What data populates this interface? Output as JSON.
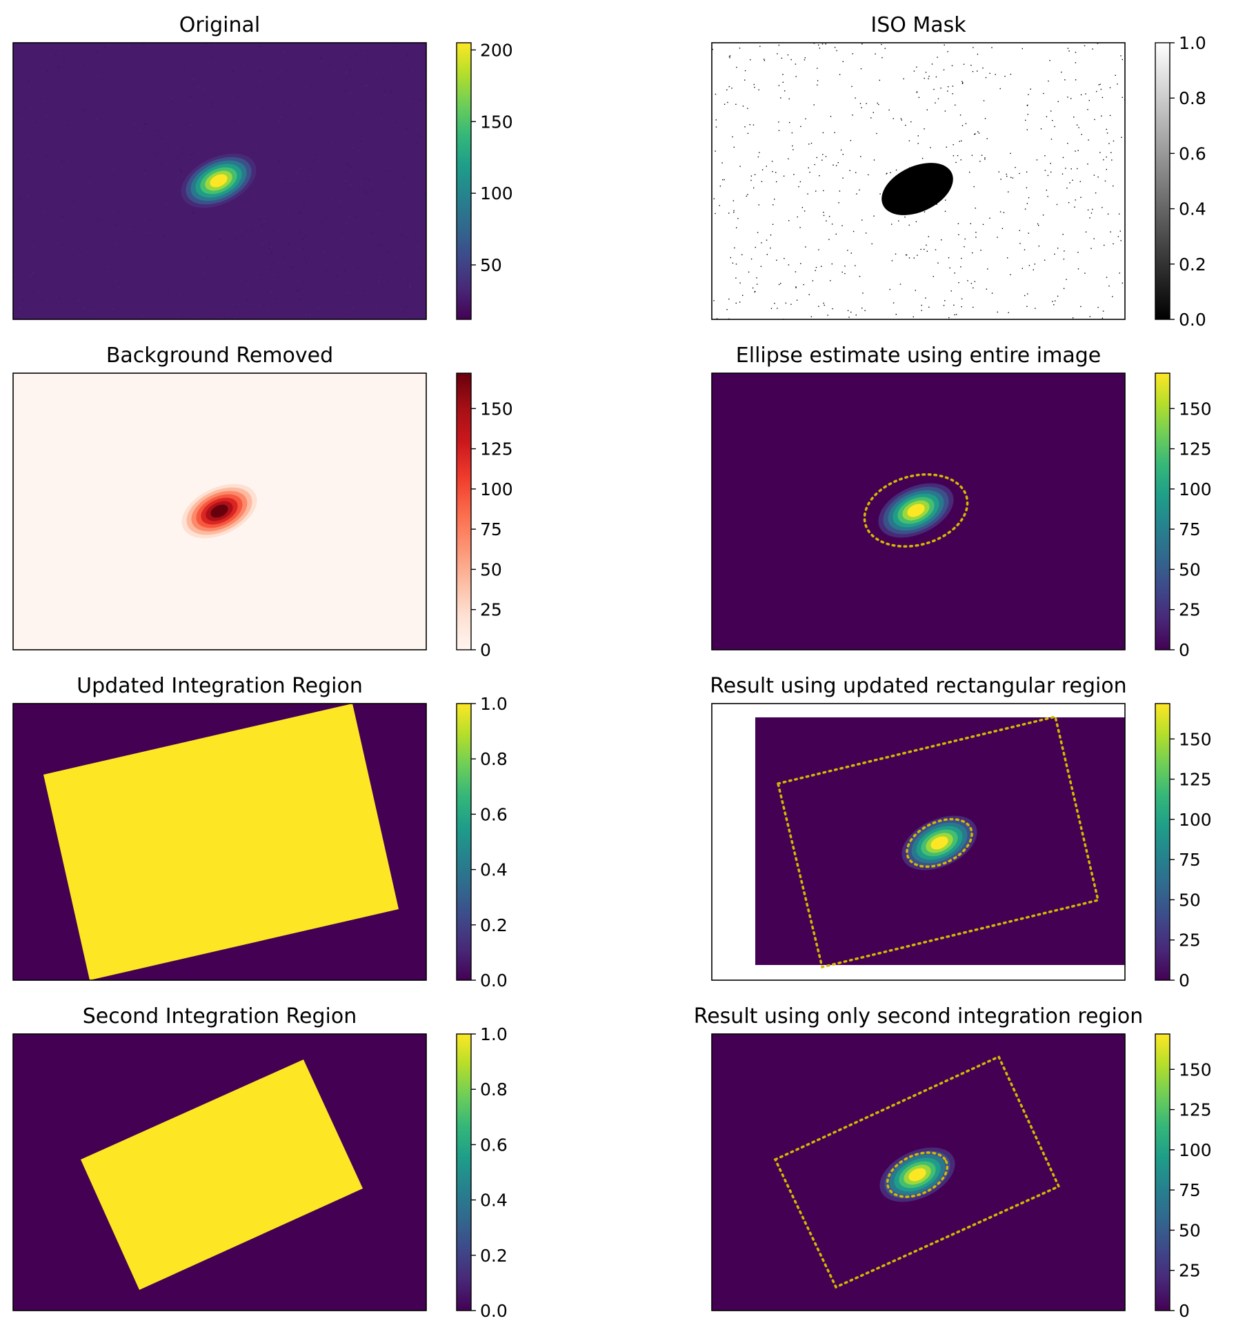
{
  "chart_data": [
    {
      "type": "heatmap",
      "title": "Original",
      "colormap": "viridis",
      "colorbar": {
        "vmin": 12,
        "vmax": 205,
        "ticks": [
          50,
          100,
          150,
          200
        ]
      },
      "content": {
        "kind": "blob",
        "background_level": 0.07,
        "noise": true,
        "blob": {
          "peak": 1.0,
          "angle_deg": -25
        }
      }
    },
    {
      "type": "heatmap",
      "title": "ISO Mask",
      "colormap": "gray",
      "colorbar": {
        "vmin": 0,
        "vmax": 1,
        "ticks": [
          0.0,
          0.2,
          0.4,
          0.6,
          0.8,
          1.0
        ]
      },
      "content": {
        "kind": "mask",
        "background_value": 1,
        "object_value": 0,
        "speckles": true,
        "ellipse_angle_deg": -25
      }
    },
    {
      "type": "heatmap",
      "title": "Background Removed",
      "colormap": "Reds",
      "colorbar": {
        "vmin": 0,
        "vmax": 172,
        "ticks": [
          0,
          25,
          50,
          75,
          100,
          125,
          150
        ]
      },
      "content": {
        "kind": "blob",
        "background_level": 0.0,
        "noise": false,
        "blob": {
          "peak": 1.0,
          "angle_deg": -25
        }
      }
    },
    {
      "type": "heatmap",
      "title": "Ellipse estimate using entire image",
      "colormap": "viridis",
      "colorbar": {
        "vmin": 0,
        "vmax": 172,
        "ticks": [
          0,
          25,
          50,
          75,
          100,
          125,
          150
        ]
      },
      "content": {
        "kind": "blob",
        "background_level": 0.0,
        "noise": false,
        "blob": {
          "peak": 1.0,
          "angle_deg": -25
        }
      },
      "overlays": [
        {
          "kind": "ellipse",
          "color": "#d4b800",
          "angle_deg": -15
        }
      ]
    },
    {
      "type": "heatmap",
      "title": "Updated Integration Region",
      "colormap": "viridis",
      "colorbar": {
        "vmin": 0,
        "vmax": 1,
        "ticks": [
          0.0,
          0.2,
          0.4,
          0.6,
          0.8,
          1.0
        ]
      },
      "content": {
        "kind": "region",
        "region_value": 1,
        "background_value": 0
      }
    },
    {
      "type": "heatmap",
      "title": "Result using updated rectangular region",
      "colormap": "viridis",
      "colorbar": {
        "vmin": 0,
        "vmax": 172,
        "ticks": [
          0,
          25,
          50,
          75,
          100,
          125,
          150
        ]
      },
      "content": {
        "kind": "blob",
        "background_level": 0.0,
        "noise": false,
        "blob": {
          "peak": 1.0,
          "angle_deg": -25
        }
      },
      "overlays": [
        {
          "kind": "ellipse",
          "color": "#d4b800",
          "angle_deg": -25
        },
        {
          "kind": "rectangle",
          "color": "#d4b800"
        }
      ]
    },
    {
      "type": "heatmap",
      "title": "Second Integration Region",
      "colormap": "viridis",
      "colorbar": {
        "vmin": 0,
        "vmax": 1,
        "ticks": [
          0.0,
          0.2,
          0.4,
          0.6,
          0.8,
          1.0
        ]
      },
      "content": {
        "kind": "region",
        "region_value": 1,
        "background_value": 0
      }
    },
    {
      "type": "heatmap",
      "title": "Result using only second integration region",
      "colormap": "viridis",
      "colorbar": {
        "vmin": 0,
        "vmax": 172,
        "ticks": [
          0,
          25,
          50,
          75,
          100,
          125,
          150
        ]
      },
      "content": {
        "kind": "blob",
        "background_level": 0.0,
        "noise": false,
        "blob": {
          "peak": 1.0,
          "angle_deg": -25
        }
      },
      "overlays": [
        {
          "kind": "ellipse",
          "color": "#d4b800",
          "angle_deg": -25
        },
        {
          "kind": "rectangle",
          "color": "#d4b800"
        }
      ]
    }
  ],
  "colors": {
    "viridis": [
      "#440154",
      "#482878",
      "#3e4989",
      "#31688e",
      "#26828e",
      "#1f9e89",
      "#35b779",
      "#6ece58",
      "#b5de2b",
      "#fde725"
    ],
    "gray": [
      "#000000",
      "#ffffff"
    ],
    "Reds": [
      "#fff5f0",
      "#fee0d2",
      "#fcbba1",
      "#fc9272",
      "#fb6a4a",
      "#ef3b2c",
      "#cb181d",
      "#a50f15",
      "#67000d"
    ],
    "overlay": "#d4b800"
  }
}
